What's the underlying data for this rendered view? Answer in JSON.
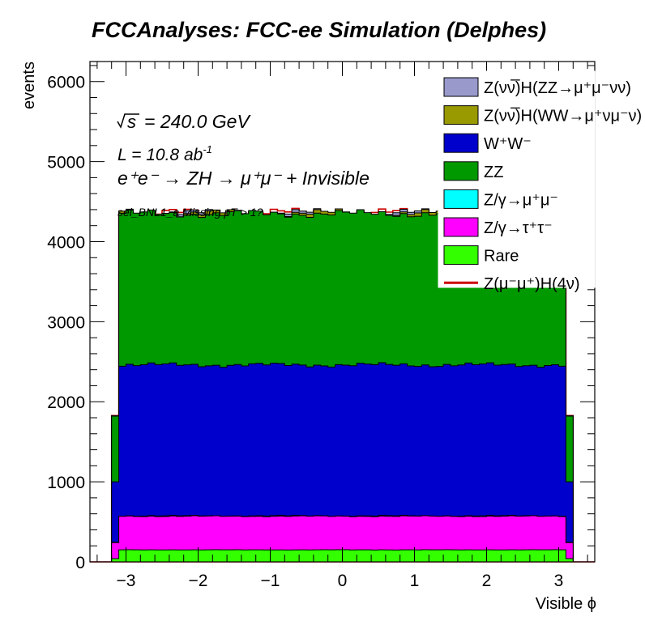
{
  "chart_data": {
    "type": "area",
    "title": "FCCAnalyses: FCC-ee Simulation (Delphes)",
    "xlabel": "Visible ϕ",
    "ylabel": "events",
    "xlim": [
      -3.5,
      3.5
    ],
    "ylim": [
      0,
      6250
    ],
    "x_ticks": [
      "−3",
      "−2",
      "−1",
      "0",
      "1",
      "2",
      "3"
    ],
    "y_ticks": [
      "0",
      "1000",
      "2000",
      "3000",
      "4000",
      "5000",
      "6000"
    ],
    "x_tick_values": [
      -3,
      -2,
      -1,
      0,
      1,
      2,
      3
    ],
    "y_tick_values": [
      0,
      1000,
      2000,
      3000,
      4000,
      5000,
      6000
    ],
    "bins": {
      "start": -3.5,
      "width": 0.1,
      "count": 70,
      "nonzero_from": -3.2,
      "nonzero_to": 3.2
    },
    "annotations": {
      "sqrt_s": "240.0 GeV",
      "lumi": "L = 10.8 ab",
      "lumi_exp": "-1",
      "process": "e⁺e⁻ → ZH → μ⁺μ⁻ + Invisible",
      "selection": "sel_BNL1_a Missing pT > 1?"
    },
    "series": [
      {
        "name": "Rare",
        "color": "#33ff00",
        "level": 150,
        "edge": 40
      },
      {
        "name": "Z/γ→τ⁺τ⁻",
        "color": "#ff00ff",
        "level": 570,
        "edge": 240
      },
      {
        "name": "Z/γ→μ⁺μ⁻",
        "color": "#00ffff",
        "level": 575,
        "edge": 245
      },
      {
        "name": "W⁺W⁻",
        "color": "#0000cc",
        "level": 2460,
        "edge": 1000
      },
      {
        "name": "ZZ",
        "color": "#009900",
        "level": 4350,
        "edge": 1820
      },
      {
        "name": "Z(νν̅)H(WW→μ⁺νμ⁻ν)",
        "color": "#999900",
        "level": 4360,
        "edge": 1825
      },
      {
        "name": "Z(νν̅)H(ZZ→μ⁺μ⁻νν)",
        "color": "#9999cc",
        "level": 4362,
        "edge": 1826
      }
    ],
    "signal": {
      "name": "Z(μ⁻μ⁺)H(4ν)",
      "color": "#cc0000",
      "level": 4365,
      "edge": 1828
    }
  },
  "legend": {
    "items": [
      {
        "label": "Z(νν̅)H(ZZ→μ⁺μ⁻νν)",
        "color": "#9999cc",
        "style": "box"
      },
      {
        "label": "Z(νν̅)H(WW→μ⁺νμ⁻ν)",
        "color": "#999900",
        "style": "box"
      },
      {
        "label": "W⁺W⁻",
        "color": "#0000cc",
        "style": "box"
      },
      {
        "label": "ZZ",
        "color": "#009900",
        "style": "box"
      },
      {
        "label": "Z/γ→μ⁺μ⁻",
        "color": "#00ffff",
        "style": "box"
      },
      {
        "label": "Z/γ→τ⁺τ⁻",
        "color": "#ff00ff",
        "style": "box"
      },
      {
        "label": "Rare",
        "color": "#33ff00",
        "style": "box"
      },
      {
        "label": "Z(μ⁻μ⁺)H(4ν)",
        "color": "#cc0000",
        "style": "line"
      }
    ]
  }
}
